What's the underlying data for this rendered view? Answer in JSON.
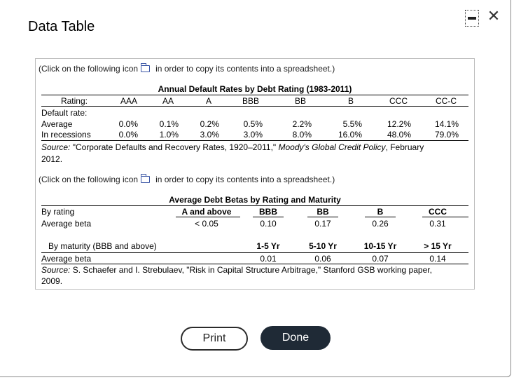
{
  "dialog": {
    "title": "Data Table",
    "minimize_label": "",
    "close_symbol": "✕"
  },
  "copy_note": {
    "prefix": "(Click on the following icon",
    "suffix": "in order to copy its contents into a spreadsheet.)"
  },
  "table1": {
    "title": "Annual Default Rates by Debt Rating (1983-2011)",
    "header": [
      "Rating:",
      "AAA",
      "AA",
      "A",
      "BBB",
      "BB",
      "B",
      "CCC",
      "CC-C"
    ],
    "section_label": "Default rate:",
    "rows": [
      {
        "label": "Average",
        "values": [
          "0.0%",
          "0.1%",
          "0.2%",
          "0.5%",
          "2.2%",
          "5.5%",
          "12.2%",
          "14.1%"
        ]
      },
      {
        "label": "In recessions",
        "values": [
          "0.0%",
          "1.0%",
          "3.0%",
          "3.0%",
          "8.0%",
          "16.0%",
          "48.0%",
          "79.0%"
        ]
      }
    ],
    "source": {
      "prefix": "Source:",
      "quote": " \"Corporate Defaults and Recovery Rates, 1920–2011,\" ",
      "publication": "Moody's Global Credit Policy",
      "suffix": ", February",
      "line2": "2012."
    }
  },
  "table2": {
    "title": "Average Debt Betas by Rating and Maturity",
    "rating_header": [
      "By rating",
      "A and above",
      "BBB",
      "BB",
      "B",
      "CCC"
    ],
    "rating_row": {
      "label": "Average beta",
      "values": [
        "< 0.05",
        "0.10",
        "0.17",
        "0.26",
        "0.31"
      ]
    },
    "maturity_header": [
      "By maturity (BBB and above)",
      "1-5 Yr",
      "5-10 Yr",
      "10-15 Yr",
      "> 15 Yr"
    ],
    "maturity_row": {
      "label": "Average beta",
      "values": [
        "0.01",
        "0.06",
        "0.07",
        "0.14"
      ]
    },
    "source": {
      "prefix": "Source:",
      "text": "  S. Schaefer and I. Strebulaev, \"Risk in Capital Structure Arbitrage,\" Stanford GSB working paper,",
      "line2": "2009."
    }
  },
  "buttons": {
    "print": "Print",
    "done": "Done"
  }
}
